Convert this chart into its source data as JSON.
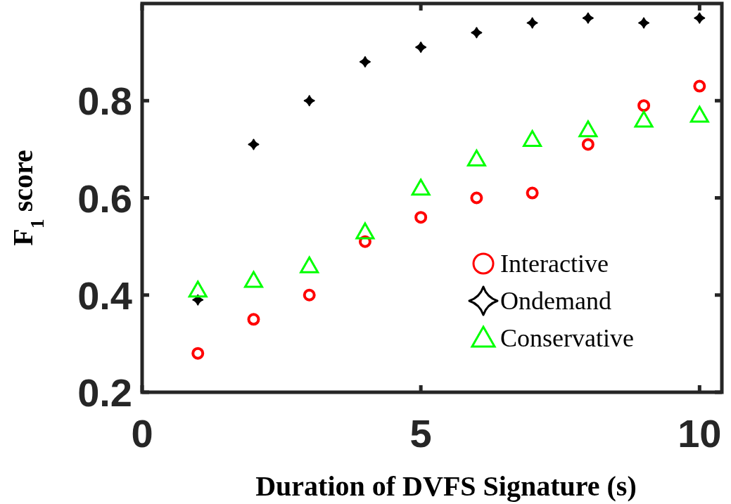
{
  "chart_data": {
    "type": "scatter",
    "xlabel": "Duration of DVFS Signature (s)",
    "ylabel": "F$_{1}$ score",
    "x": [
      1,
      2,
      3,
      4,
      5,
      6,
      7,
      8,
      9,
      10
    ],
    "series": [
      {
        "name": "Interactive",
        "color": "#ff0000",
        "marker": "circle",
        "values": [
          0.28,
          0.35,
          0.4,
          0.51,
          0.56,
          0.6,
          0.61,
          0.71,
          0.79,
          0.83
        ]
      },
      {
        "name": "Ondemand",
        "color": "#000000",
        "marker": "star",
        "values": [
          0.39,
          0.71,
          0.8,
          0.88,
          0.91,
          0.94,
          0.96,
          0.97,
          0.96,
          0.97
        ]
      },
      {
        "name": "Conservative",
        "color": "#00ff00",
        "marker": "triangle",
        "values": [
          0.41,
          0.43,
          0.46,
          0.53,
          0.62,
          0.68,
          0.72,
          0.74,
          0.76,
          0.77
        ]
      }
    ],
    "xlim": [
      0,
      10.4
    ],
    "ylim": [
      0.2,
      1.0
    ],
    "xticks": [
      0,
      5,
      10
    ],
    "yticks": [
      0.2,
      0.4,
      0.6,
      0.8
    ],
    "grid": false,
    "legend": "right"
  }
}
